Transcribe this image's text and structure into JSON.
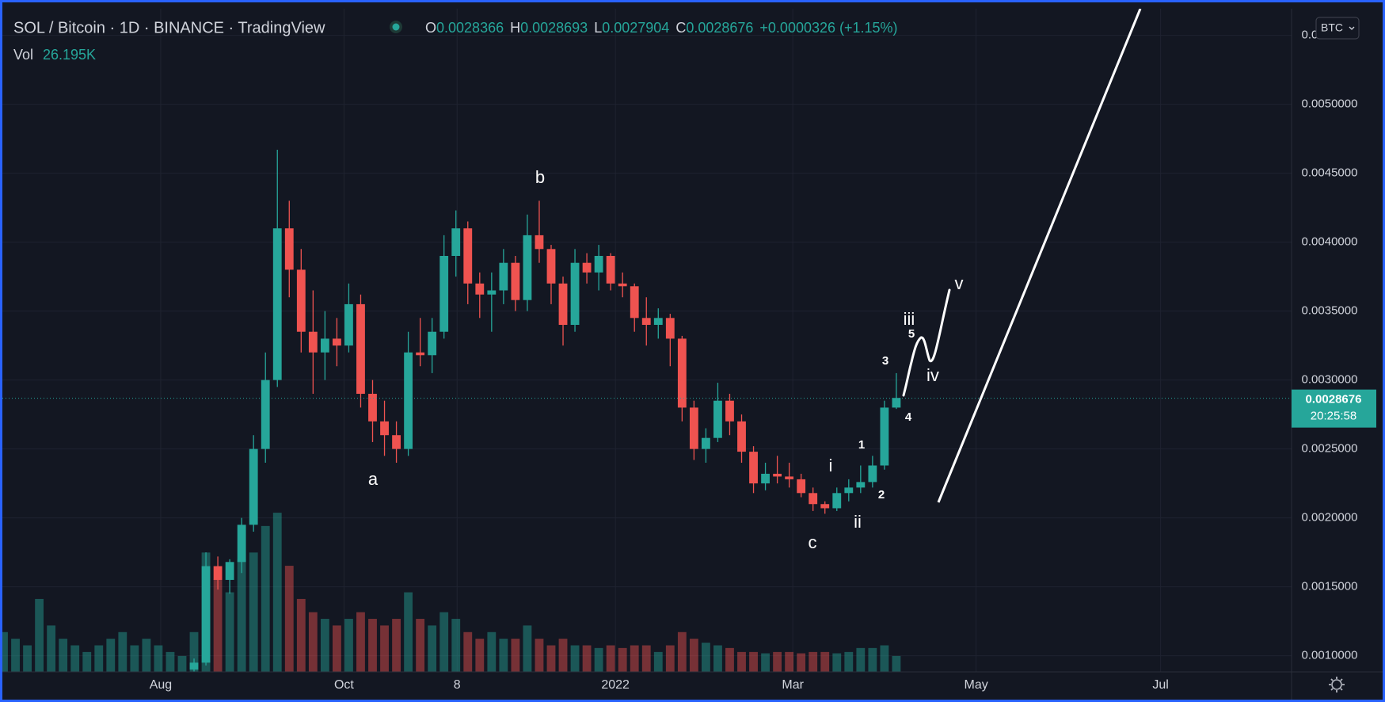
{
  "chart_data": {
    "type": "candlestick",
    "title": "SOL / Bitcoin · 1D · BINANCE · TradingView",
    "ohlc": [
      {
        "label": "O",
        "value": 0.0028366
      },
      {
        "label": "H",
        "value": 0.0028693
      },
      {
        "label": "L",
        "value": 0.0027904
      },
      {
        "label": "C",
        "value": 0.0028676
      }
    ],
    "change": "+0.0000326 (+1.15%)",
    "volume_label": "Vol",
    "volume_value": "26.195K",
    "currency": "BTC",
    "last_price": 0.0028676,
    "countdown": "20:25:58",
    "up_color": "#26a69a",
    "down_color": "#ef5350",
    "ylim": [
      0.000883,
      0.005693
    ],
    "yticks": [
      {
        "value": 0.001,
        "label": "0.0010000"
      },
      {
        "value": 0.0015,
        "label": "0.0015000"
      },
      {
        "value": 0.002,
        "label": "0.0020000"
      },
      {
        "value": 0.0025,
        "label": "0.0025000"
      },
      {
        "value": 0.003,
        "label": "0.0030000"
      },
      {
        "value": 0.0035,
        "label": "0.0035000"
      },
      {
        "value": 0.004,
        "label": "0.0040000"
      },
      {
        "value": 0.0045,
        "label": "0.0045000"
      },
      {
        "value": 0.005,
        "label": "0.0050000"
      },
      {
        "value": 0.0055,
        "label": "0.0055000"
      }
    ],
    "xlim": [
      -0.1,
      108.2
    ],
    "xticks": [
      {
        "value": 13.2,
        "label": "Aug"
      },
      {
        "value": 28.6,
        "label": "Oct"
      },
      {
        "value": 38.1,
        "label": "8"
      },
      {
        "value": 51.4,
        "label": "2022"
      },
      {
        "value": 66.3,
        "label": "Mar"
      },
      {
        "value": 81.7,
        "label": "May"
      },
      {
        "value": 97.2,
        "label": "Jul"
      }
    ],
    "y2lim": [
      0,
      500
    ],
    "grid": true,
    "x": [
      0,
      1,
      2,
      3,
      4,
      5,
      6,
      7,
      8,
      9,
      10,
      11,
      12,
      13,
      14,
      15,
      16,
      17,
      18,
      19,
      20,
      21,
      22,
      23,
      24,
      25,
      26,
      27,
      28,
      29,
      30,
      31,
      32,
      33,
      34,
      35,
      36,
      37,
      38,
      39,
      40,
      41,
      42,
      43,
      44,
      45,
      46,
      47,
      48,
      49,
      50,
      51,
      52,
      53,
      54,
      55,
      56,
      57,
      58,
      59,
      60,
      61,
      62,
      63,
      64,
      65,
      66,
      67,
      68,
      69,
      70,
      71,
      72,
      73,
      74,
      75
    ],
    "open": [
      null,
      null,
      null,
      null,
      null,
      null,
      null,
      null,
      null,
      null,
      null,
      null,
      null,
      null,
      null,
      null,
      0.0009,
      0.00095,
      0.00165,
      0.00155,
      0.00168,
      0.00195,
      0.0025,
      0.003,
      0.0041,
      0.0038,
      0.00335,
      0.0032,
      0.0033,
      0.00325,
      0.00355,
      0.0029,
      0.0027,
      0.0026,
      0.0025,
      0.0032,
      0.00318,
      0.00335,
      0.0039,
      0.0041,
      0.0037,
      0.00362,
      0.00365,
      0.00385,
      0.00358,
      0.00405,
      0.00395,
      0.0037,
      0.0034,
      0.00385,
      0.00378,
      0.0039,
      0.0037,
      0.00368,
      0.00345,
      0.0034,
      0.00345,
      0.0033,
      0.0028,
      0.0025,
      0.00258,
      0.00285,
      0.0027,
      0.00248,
      0.00225,
      0.00232,
      0.0023,
      0.00228,
      0.00218,
      0.0021,
      0.00207,
      0.00218,
      0.00222,
      0.00226,
      0.00238,
      0.0028
    ],
    "high": [
      null,
      null,
      null,
      null,
      null,
      null,
      null,
      null,
      null,
      null,
      null,
      null,
      null,
      null,
      null,
      null,
      0.00098,
      0.00175,
      0.00172,
      0.0017,
      0.002,
      0.0026,
      0.0032,
      0.00467,
      0.0043,
      0.00395,
      0.00365,
      0.0035,
      0.00345,
      0.0037,
      0.00362,
      0.003,
      0.00285,
      0.0027,
      0.00335,
      0.00345,
      0.00345,
      0.00405,
      0.00423,
      0.00415,
      0.00378,
      0.00378,
      0.00395,
      0.0039,
      0.0042,
      0.0043,
      0.00398,
      0.00375,
      0.00395,
      0.00392,
      0.00398,
      0.00392,
      0.00378,
      0.0037,
      0.0036,
      0.00352,
      0.00348,
      0.00332,
      0.00285,
      0.00265,
      0.00298,
      0.0029,
      0.00275,
      0.00252,
      0.0024,
      0.00245,
      0.0024,
      0.00232,
      0.00222,
      0.00212,
      0.00222,
      0.00228,
      0.00238,
      0.00245,
      0.00285,
      0.00305
    ],
    "low": [
      null,
      null,
      null,
      null,
      null,
      null,
      null,
      null,
      null,
      null,
      null,
      null,
      null,
      null,
      null,
      null,
      0.00088,
      0.00093,
      0.00148,
      0.00145,
      0.0016,
      0.0019,
      0.0024,
      0.00295,
      0.0036,
      0.0032,
      0.0029,
      0.003,
      0.0031,
      0.0032,
      0.0028,
      0.00255,
      0.00245,
      0.0024,
      0.00245,
      0.0031,
      0.00305,
      0.0033,
      0.00375,
      0.00355,
      0.00345,
      0.00335,
      0.00355,
      0.0035,
      0.0035,
      0.00385,
      0.00355,
      0.00325,
      0.00335,
      0.0037,
      0.00365,
      0.00365,
      0.0036,
      0.00335,
      0.00325,
      0.0033,
      0.0031,
      0.0027,
      0.00242,
      0.0024,
      0.00255,
      0.0026,
      0.0024,
      0.00218,
      0.0022,
      0.00225,
      0.00222,
      0.00215,
      0.00205,
      0.00203,
      0.00205,
      0.00212,
      0.00218,
      0.00222,
      0.00235,
      0.00279
    ],
    "close": [
      null,
      null,
      null,
      null,
      null,
      null,
      null,
      null,
      null,
      null,
      null,
      null,
      null,
      null,
      null,
      null,
      0.00095,
      0.00165,
      0.00155,
      0.00168,
      0.00195,
      0.0025,
      0.003,
      0.0041,
      0.0038,
      0.00335,
      0.0032,
      0.0033,
      0.00325,
      0.00355,
      0.0029,
      0.0027,
      0.0026,
      0.0025,
      0.0032,
      0.00318,
      0.00335,
      0.0039,
      0.0041,
      0.0037,
      0.00362,
      0.00365,
      0.00385,
      0.00358,
      0.00405,
      0.00395,
      0.0037,
      0.0034,
      0.00385,
      0.00378,
      0.0039,
      0.0037,
      0.00368,
      0.00345,
      0.0034,
      0.00345,
      0.0033,
      0.0028,
      0.0025,
      0.00258,
      0.00285,
      0.0027,
      0.00248,
      0.00225,
      0.00232,
      0.0023,
      0.00228,
      0.00218,
      0.0021,
      0.00207,
      0.00218,
      0.00222,
      0.00226,
      0.00238,
      0.0028,
      0.00287
    ],
    "volume": [
      30,
      25,
      20,
      55,
      35,
      25,
      20,
      15,
      20,
      25,
      30,
      20,
      25,
      20,
      15,
      12,
      30,
      90,
      70,
      60,
      85,
      90,
      110,
      120,
      80,
      55,
      45,
      40,
      35,
      40,
      45,
      40,
      35,
      40,
      60,
      40,
      35,
      45,
      40,
      30,
      25,
      30,
      25,
      25,
      35,
      25,
      20,
      25,
      20,
      20,
      18,
      20,
      18,
      20,
      20,
      15,
      20,
      30,
      25,
      22,
      20,
      18,
      15,
      15,
      14,
      15,
      15,
      14,
      15,
      15,
      14,
      15,
      18,
      18,
      20,
      12
    ],
    "annotations": [
      "b",
      "a",
      "c",
      "i",
      "ii",
      "1",
      "2",
      "3",
      "4",
      "iii",
      "5",
      "iv",
      "v"
    ]
  }
}
